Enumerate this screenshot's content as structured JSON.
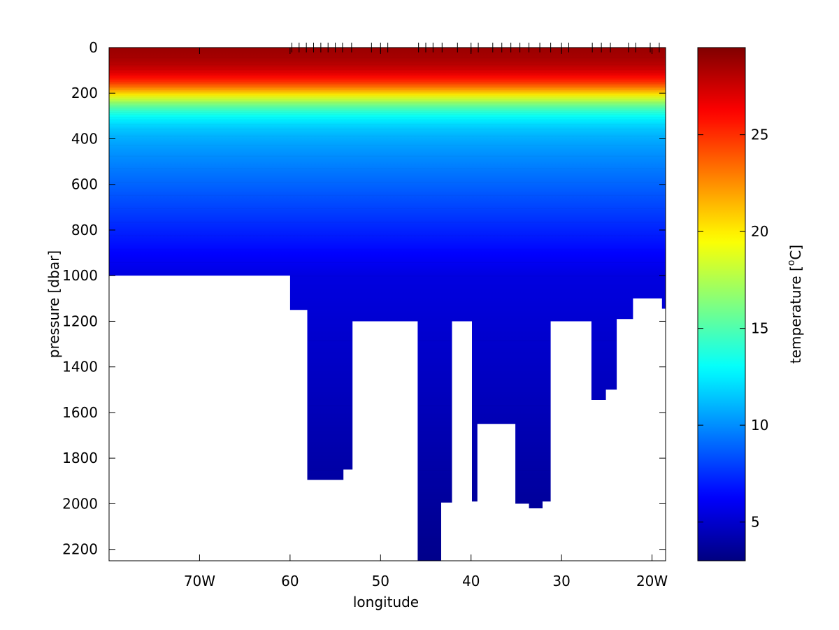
{
  "chart_data": {
    "type": "heatmap",
    "title": "",
    "xlabel": "longitude",
    "ylabel": "pressure [dbar]",
    "colorbar_label": "temperature [",
    "colorbar_label_sup": "o",
    "colorbar_label_end": "C]",
    "xlim": [
      -80,
      -18.5
    ],
    "ylim": [
      0,
      2250
    ],
    "y_inverted": true,
    "x_ticks": [
      {
        "value": -70,
        "label": "70W"
      },
      {
        "value": -60,
        "label": "60"
      },
      {
        "value": -50,
        "label": "50"
      },
      {
        "value": -40,
        "label": "40"
      },
      {
        "value": -30,
        "label": "30"
      },
      {
        "value": -20,
        "label": "20W"
      }
    ],
    "y_ticks": [
      {
        "value": 0,
        "label": "0"
      },
      {
        "value": 200,
        "label": "200"
      },
      {
        "value": 400,
        "label": "400"
      },
      {
        "value": 600,
        "label": "600"
      },
      {
        "value": 800,
        "label": "800"
      },
      {
        "value": 1000,
        "label": "1000"
      },
      {
        "value": 1200,
        "label": "1200"
      },
      {
        "value": 1400,
        "label": "1400"
      },
      {
        "value": 1600,
        "label": "1600"
      },
      {
        "value": 1800,
        "label": "1800"
      },
      {
        "value": 2000,
        "label": "2000"
      },
      {
        "value": 2200,
        "label": "2200"
      }
    ],
    "colorbar": {
      "range": [
        3,
        29.5
      ],
      "colormap": "jet",
      "ticks": [
        {
          "value": 5,
          "label": "5"
        },
        {
          "value": 10,
          "label": "10"
        },
        {
          "value": 15,
          "label": "15"
        },
        {
          "value": 20,
          "label": "20"
        },
        {
          "value": 25,
          "label": "25"
        }
      ]
    },
    "station_longitudes": [
      -59.8,
      -59.0,
      -58.2,
      -57.4,
      -56.6,
      -55.8,
      -55.0,
      -54.2,
      -53.2,
      -51.0,
      -50.0,
      -49.2,
      -45.8,
      -45.0,
      -44.2,
      -43.2,
      -41.5,
      -40.0,
      -39.2,
      -37.6,
      -36.6,
      -35.6,
      -34.6,
      -33.6,
      -32.4,
      -31.2,
      -30.0,
      -29.2,
      -26.6,
      -25.6,
      -24.6,
      -22.6,
      -21.8,
      -20.2,
      -19.2
    ],
    "bottom_profile": [
      {
        "lon": -80.0,
        "p": 1000
      },
      {
        "lon": -60.0,
        "p": 1000
      },
      {
        "lon": -60.0,
        "p": 1150
      },
      {
        "lon": -58.1,
        "p": 1150
      },
      {
        "lon": -58.1,
        "p": 1895
      },
      {
        "lon": -54.1,
        "p": 1895
      },
      {
        "lon": -54.1,
        "p": 1850
      },
      {
        "lon": -53.1,
        "p": 1850
      },
      {
        "lon": -53.1,
        "p": 1200
      },
      {
        "lon": -45.9,
        "p": 1200
      },
      {
        "lon": -45.9,
        "p": 2250
      },
      {
        "lon": -43.3,
        "p": 2250
      },
      {
        "lon": -43.3,
        "p": 1995
      },
      {
        "lon": -42.1,
        "p": 1995
      },
      {
        "lon": -42.1,
        "p": 1200
      },
      {
        "lon": -39.9,
        "p": 1200
      },
      {
        "lon": -39.9,
        "p": 1990
      },
      {
        "lon": -39.3,
        "p": 1990
      },
      {
        "lon": -39.3,
        "p": 1650
      },
      {
        "lon": -35.1,
        "p": 1650
      },
      {
        "lon": -35.1,
        "p": 2000
      },
      {
        "lon": -33.6,
        "p": 2000
      },
      {
        "lon": -33.6,
        "p": 2020
      },
      {
        "lon": -32.1,
        "p": 2020
      },
      {
        "lon": -32.1,
        "p": 1990
      },
      {
        "lon": -31.2,
        "p": 1990
      },
      {
        "lon": -31.2,
        "p": 1200
      },
      {
        "lon": -26.7,
        "p": 1200
      },
      {
        "lon": -26.7,
        "p": 1545
      },
      {
        "lon": -25.1,
        "p": 1545
      },
      {
        "lon": -25.1,
        "p": 1500
      },
      {
        "lon": -23.9,
        "p": 1500
      },
      {
        "lon": -23.9,
        "p": 1190
      },
      {
        "lon": -22.1,
        "p": 1190
      },
      {
        "lon": -22.1,
        "p": 1100
      },
      {
        "lon": -18.9,
        "p": 1100
      },
      {
        "lon": -18.9,
        "p": 1145
      },
      {
        "lon": -18.5,
        "p": 1145
      }
    ],
    "temperature_profile": {
      "surface_temp": 29,
      "thermocline_center_p": 330,
      "deep_temp_at_1000": 5.5,
      "deep_temp_at_2250": 3.3
    }
  }
}
